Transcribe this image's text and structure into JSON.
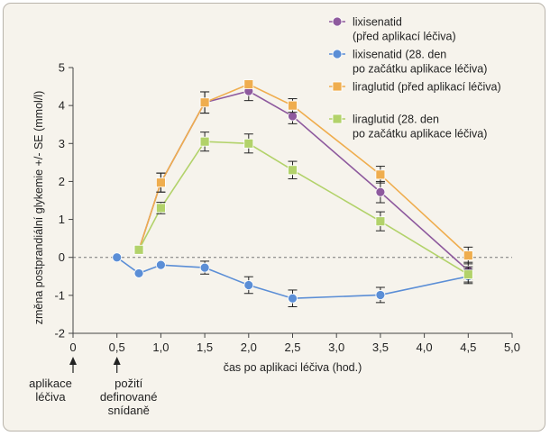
{
  "chart_data": {
    "type": "line",
    "xlabel": "čas po aplikaci léčiva (hod.)",
    "ylabel": "změna postprandiální glykemie +/- SE (mmol/l)",
    "xlim": [
      0,
      5
    ],
    "ylim": [
      -2,
      5
    ],
    "xticks": [
      "0",
      "0,5",
      "1,0",
      "1,5",
      "2,0",
      "2,5",
      "3,0",
      "3,5",
      "4,0",
      "4,5",
      "5,0"
    ],
    "yticks": [
      "-2",
      "-1",
      "0",
      "1",
      "2",
      "3",
      "4",
      "5"
    ],
    "reference_line_y": 0,
    "legend_position": "top-right",
    "series": [
      {
        "name": "lixisenatid",
        "name_line2": "(před aplikací léčiva)",
        "marker": "circle",
        "color": "#8e5a9e",
        "x": [
          0.75,
          1.0,
          1.5,
          2.0,
          2.5,
          3.5,
          4.5
        ],
        "y": [
          0.2,
          1.97,
          4.08,
          4.38,
          3.72,
          1.72,
          -0.35
        ],
        "err": [
          0.1,
          0.25,
          0.28,
          0.25,
          0.2,
          0.28,
          0.22
        ]
      },
      {
        "name": "lixisenatid (28. den",
        "name_line2": "po začátku aplikace léčiva)",
        "marker": "circle",
        "color": "#5b8ed6",
        "x": [
          0.5,
          0.75,
          1.0,
          1.5,
          2.0,
          2.5,
          3.5,
          4.5
        ],
        "y": [
          0.0,
          -0.42,
          -0.2,
          -0.27,
          -0.73,
          -1.08,
          -0.99,
          -0.5
        ],
        "err": [
          0,
          0,
          0,
          0.17,
          0.22,
          0.22,
          0.2,
          0.19
        ]
      },
      {
        "name": "liraglutid (před aplikací léčiva)",
        "name_line2": "",
        "marker": "square",
        "color": "#efad4e",
        "x": [
          0.75,
          1.0,
          1.5,
          2.0,
          2.5,
          3.5,
          4.5
        ],
        "y": [
          0.2,
          1.97,
          4.08,
          4.56,
          4.0,
          2.18,
          0.05
        ],
        "err": [
          0.1,
          0.25,
          0.28,
          0.1,
          0.18,
          0.22,
          0.22
        ]
      },
      {
        "name": "liraglutid (28. den",
        "name_line2": "po začátku aplikace léčiva)",
        "marker": "square",
        "color": "#b2d26a",
        "x": [
          0.75,
          1.0,
          1.5,
          2.0,
          2.5,
          3.5,
          4.5
        ],
        "y": [
          0.2,
          1.3,
          3.05,
          3.0,
          2.3,
          0.95,
          -0.45
        ],
        "err": [
          0.1,
          0.15,
          0.25,
          0.25,
          0.23,
          0.25,
          0.2
        ]
      }
    ],
    "annotations": [
      {
        "x": 0,
        "line1": "aplikace",
        "line2": "léčiva",
        "line3": ""
      },
      {
        "x": 0.5,
        "line1": "požití",
        "line2": "definované",
        "line3": "snídaně"
      }
    ]
  }
}
